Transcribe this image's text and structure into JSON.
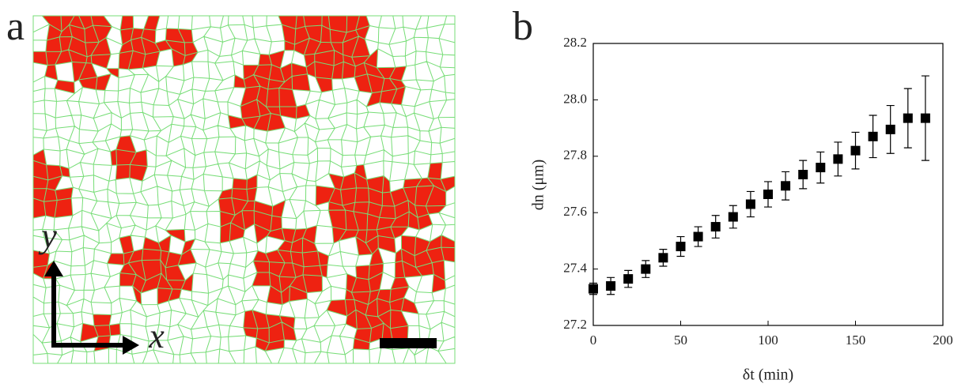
{
  "panel_a": {
    "label": "a",
    "x_arrow_label": "x",
    "y_arrow_label": "y"
  },
  "chart_data": {
    "type": "scatter",
    "panel_label": "b",
    "x_label": "δt (min)",
    "y_label": "dn (μm)",
    "x": [
      0,
      10,
      20,
      30,
      40,
      50,
      60,
      70,
      80,
      90,
      100,
      110,
      120,
      130,
      140,
      150,
      160,
      170,
      180,
      190
    ],
    "values": [
      27.33,
      27.34,
      27.365,
      27.4,
      27.44,
      27.48,
      27.515,
      27.55,
      27.585,
      27.63,
      27.665,
      27.695,
      27.735,
      27.76,
      27.79,
      27.82,
      27.87,
      27.895,
      27.935,
      27.935
    ],
    "errors": [
      0.02,
      0.03,
      0.03,
      0.03,
      0.03,
      0.035,
      0.035,
      0.04,
      0.04,
      0.045,
      0.045,
      0.05,
      0.05,
      0.055,
      0.06,
      0.065,
      0.075,
      0.085,
      0.105,
      0.15
    ],
    "color": "#000000",
    "xlim": [
      0,
      200
    ],
    "xticks": [
      0,
      50,
      100,
      150,
      200
    ],
    "ylim": [
      27.2,
      28.2
    ],
    "yticks": [
      27.2,
      27.4,
      27.6,
      27.8,
      {
        "value": 28,
        "label": "28.0"
      },
      28.2
    ]
  }
}
